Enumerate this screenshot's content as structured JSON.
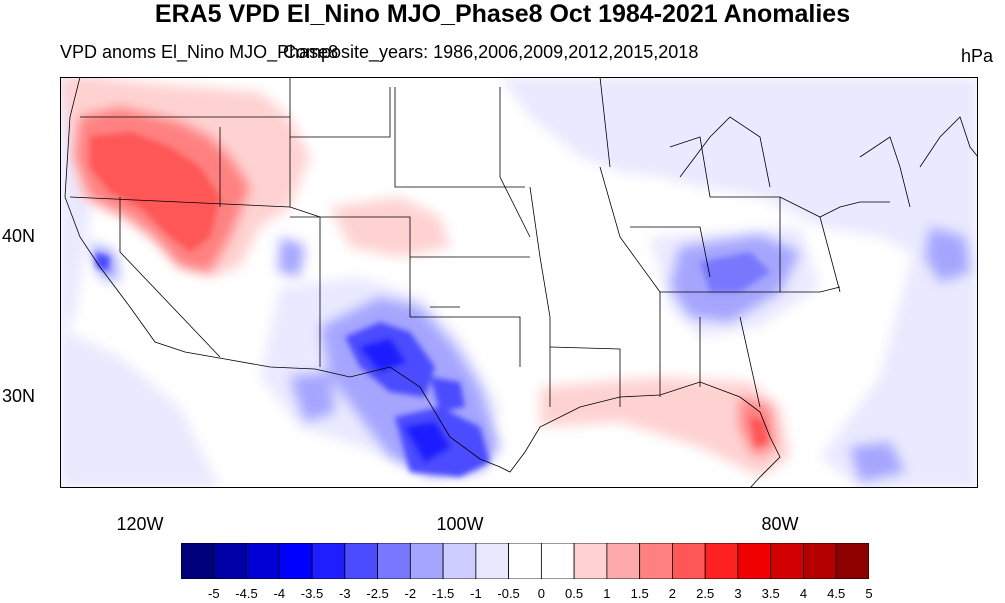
{
  "title": "ERA5 VPD El_Nino MJO_Phase8 Oct 1984-2021 Anomalies",
  "subtitle": "VPD anoms El_Nino MJO_Phase8",
  "subtitle_overlap": "Composite_years: 1986,2006,2009,2012,2015,2018",
  "units": "hPa",
  "lat_labels": [
    "40N",
    "30N"
  ],
  "lon_labels": [
    "120W",
    "100W",
    "80W"
  ],
  "colorbar": {
    "labels": [
      "-5",
      "-4.5",
      "-4",
      "-3.5",
      "-3",
      "-2.5",
      "-2",
      "-1.5",
      "-1",
      "-0.5",
      "0",
      "0.5",
      "1",
      "1.5",
      "2",
      "2.5",
      "3",
      "3.5",
      "4",
      "4.5",
      "5"
    ],
    "colors": [
      "#00007a",
      "#0000a8",
      "#0000d6",
      "#0000ff",
      "#1e1eff",
      "#4b4bff",
      "#7878ff",
      "#a5a5ff",
      "#cdcdff",
      "#e8e8ff",
      "#ffffff",
      "#ffffff",
      "#ffd2d2",
      "#ffaaaa",
      "#ff8080",
      "#ff5656",
      "#ff2020",
      "#f00000",
      "#d20000",
      "#b40000",
      "#8c0000"
    ]
  },
  "map_extent": {
    "lon_min": -125,
    "lon_max": -67.5,
    "lat_min": 24,
    "lat_max": 50
  }
}
